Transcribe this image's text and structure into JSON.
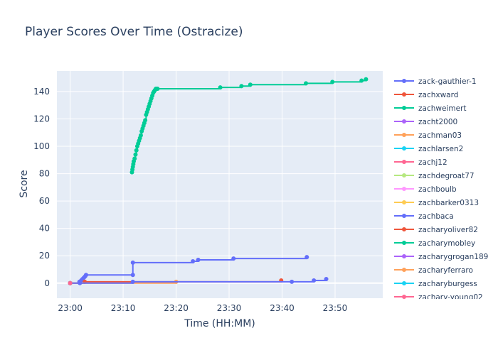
{
  "chart_data": {
    "type": "line",
    "title": "Player Scores Over Time (Ostracize)",
    "xlabel": "Time (HH:MM)",
    "ylabel": "Score",
    "x_ticks": [
      "23:00",
      "23:10",
      "23:20",
      "23:30",
      "23:40",
      "23:50"
    ],
    "y_ticks": [
      0,
      20,
      40,
      60,
      80,
      100,
      120,
      140
    ],
    "xlim": [
      "22:57:30",
      "23:59:00"
    ],
    "ylim": [
      -11,
      155
    ],
    "grid": true,
    "legend_position": "right",
    "series": [
      {
        "name": "zack-gauthier-1",
        "color": "#636efa",
        "mode": "lines+markers",
        "x": [
          "23:00:00",
          "23:01:45",
          "23:02:05",
          "23:02:20",
          "23:02:35",
          "23:02:50",
          "23:03:00",
          "23:11:50",
          "23:11:50",
          "23:23:10",
          "23:24:10",
          "23:30:50",
          "23:44:40"
        ],
        "y": [
          0,
          1,
          2,
          3,
          4,
          5,
          6,
          6,
          15,
          16,
          17,
          18,
          19
        ]
      },
      {
        "name": "zachxward",
        "color": "#EF553B",
        "mode": "lines+markers",
        "x": [
          "23:00:00",
          "23:02:45",
          "23:39:50"
        ],
        "y": [
          0,
          1,
          2
        ]
      },
      {
        "name": "zachweimert",
        "color": "#00cc96",
        "mode": "lines+markers",
        "x": [
          "23:11:40",
          "23:11:45",
          "23:11:50",
          "23:11:55",
          "23:12:00",
          "23:12:10",
          "23:12:20",
          "23:12:30",
          "23:12:40",
          "23:12:50",
          "23:13:00",
          "23:13:10",
          "23:13:20",
          "23:13:30",
          "23:13:40",
          "23:13:50",
          "23:14:00",
          "23:14:10",
          "23:14:20",
          "23:14:30",
          "23:14:40",
          "23:14:50",
          "23:15:00",
          "23:15:10",
          "23:15:20",
          "23:15:30",
          "23:15:40",
          "23:15:50",
          "23:16:00",
          "23:16:10",
          "23:16:20",
          "23:16:30",
          "23:28:20",
          "23:32:20",
          "23:34:00",
          "23:44:30",
          "23:49:30",
          "23:55:00",
          "23:55:50"
        ],
        "y": [
          81,
          83,
          85,
          87,
          89,
          91,
          94,
          97,
          100,
          102,
          104,
          106,
          108,
          111,
          113,
          115,
          117,
          119,
          123,
          125,
          127,
          129,
          131,
          133,
          135,
          137,
          139,
          140,
          141,
          142,
          142,
          142,
          143,
          144,
          145,
          146,
          147,
          148,
          149
        ]
      },
      {
        "name": "zacht2000",
        "color": "#ab63fa",
        "mode": "lines+markers",
        "x": [
          "23:00:00"
        ],
        "y": [
          0
        ]
      },
      {
        "name": "zachman03",
        "color": "#FFA15A",
        "mode": "lines+markers",
        "x": [
          "23:00:00",
          "23:20:00"
        ],
        "y": [
          0,
          1
        ]
      },
      {
        "name": "zachlarsen2",
        "color": "#19d3f3",
        "mode": "lines+markers",
        "x": [
          "23:00:00"
        ],
        "y": [
          0
        ]
      },
      {
        "name": "zachj12",
        "color": "#FF6692",
        "mode": "lines+markers",
        "x": [
          "23:00:00"
        ],
        "y": [
          0
        ]
      },
      {
        "name": "zachdegroat77",
        "color": "#B6E880",
        "mode": "lines+markers",
        "x": [
          "23:00:00"
        ],
        "y": [
          0
        ]
      },
      {
        "name": "zachboulb",
        "color": "#FF97FF",
        "mode": "lines+markers",
        "x": [
          "23:00:00"
        ],
        "y": [
          0
        ]
      },
      {
        "name": "zachbarker0313",
        "color": "#FECB52",
        "mode": "lines+markers",
        "x": [
          "23:00:00"
        ],
        "y": [
          0
        ]
      },
      {
        "name": "zachbaca",
        "color": "#636efa",
        "mode": "lines+markers",
        "x": [
          "23:00:00",
          "23:01:50",
          "23:11:50",
          "23:41:50",
          "23:46:00",
          "23:48:20"
        ],
        "y": [
          0,
          0,
          1,
          1,
          2,
          3
        ]
      },
      {
        "name": "zacharyoliver82",
        "color": "#EF553B",
        "mode": "lines+markers",
        "x": [
          "23:00:00"
        ],
        "y": [
          0
        ]
      },
      {
        "name": "zacharymobley",
        "color": "#00cc96",
        "mode": "lines+markers",
        "x": [
          "23:00:00"
        ],
        "y": [
          0
        ]
      },
      {
        "name": "zacharygrogan189",
        "color": "#ab63fa",
        "mode": "lines+markers",
        "x": [
          "23:00:00"
        ],
        "y": [
          0
        ]
      },
      {
        "name": "zacharyferraro",
        "color": "#FFA15A",
        "mode": "lines+markers",
        "x": [
          "23:00:00"
        ],
        "y": [
          0
        ]
      },
      {
        "name": "zacharyburgess",
        "color": "#19d3f3",
        "mode": "lines+markers",
        "x": [
          "23:00:00"
        ],
        "y": [
          0
        ]
      },
      {
        "name": "zachary-young02",
        "color": "#FF6692",
        "mode": "lines+markers",
        "x": [
          "23:00:00"
        ],
        "y": [
          0
        ]
      }
    ]
  }
}
